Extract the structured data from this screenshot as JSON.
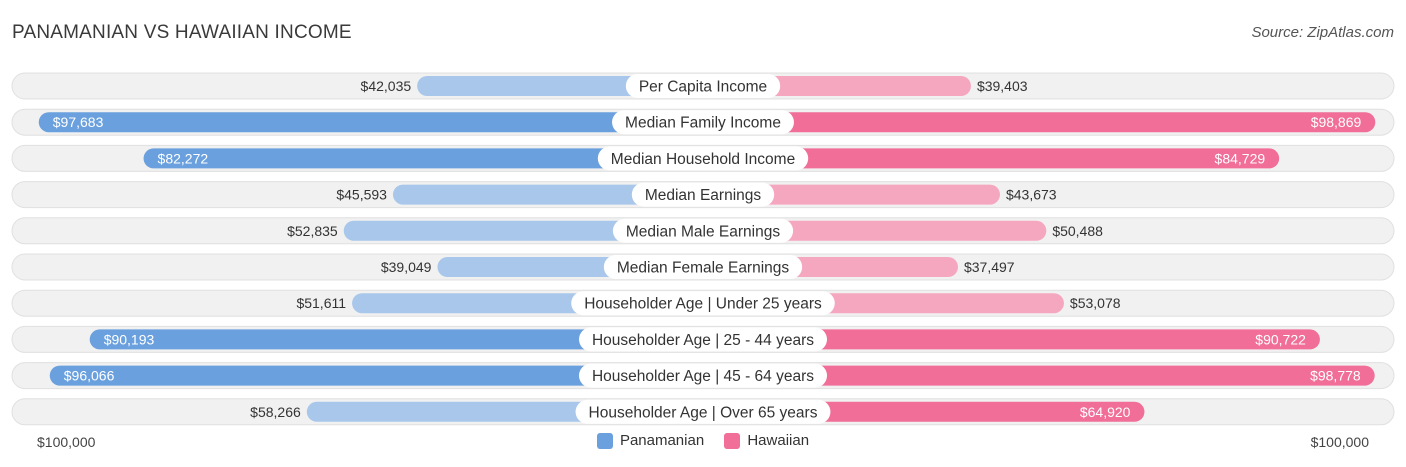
{
  "title": "PANAMANIAN VS HAWAIIAN INCOME",
  "source": "Source: ZipAtlas.com",
  "colors": {
    "left_strong": "#6aa0dd",
    "left_light": "#a8c7ea",
    "right_strong": "#f06e98",
    "right_light": "#f5a7c0",
    "row_bg": "#f1f1f1",
    "row_border": "#e0e0e0"
  },
  "axis": {
    "left_label": "$100,000",
    "right_label": "$100,000"
  },
  "legend": [
    {
      "label": "Panamanian",
      "color": "#6aa0dd"
    },
    {
      "label": "Hawaiian",
      "color": "#f06e98"
    }
  ],
  "chart_data": {
    "type": "bar",
    "orientation": "horizontal-diverging",
    "title": "PANAMANIAN VS HAWAIIAN INCOME",
    "xlim": [
      0,
      100000
    ],
    "categories": [
      "Per Capita Income",
      "Median Family Income",
      "Median Household Income",
      "Median Earnings",
      "Median Male Earnings",
      "Median Female Earnings",
      "Householder Age | Under 25 years",
      "Householder Age | 25 - 44 years",
      "Householder Age | 45 - 64 years",
      "Householder Age | Over 65 years"
    ],
    "series": [
      {
        "name": "Panamanian",
        "values": [
          42035,
          97683,
          82272,
          45593,
          52835,
          39049,
          51611,
          90193,
          96066,
          58266
        ],
        "labels": [
          "$42,035",
          "$97,683",
          "$82,272",
          "$45,593",
          "$52,835",
          "$39,049",
          "$51,611",
          "$90,193",
          "$96,066",
          "$58,266"
        ]
      },
      {
        "name": "Hawaiian",
        "values": [
          39403,
          98869,
          84729,
          43673,
          50488,
          37497,
          53078,
          90722,
          98778,
          64920
        ],
        "labels": [
          "$39,403",
          "$98,869",
          "$84,729",
          "$43,673",
          "$50,488",
          "$37,497",
          "$53,078",
          "$90,722",
          "$98,778",
          "$64,920"
        ]
      }
    ]
  }
}
